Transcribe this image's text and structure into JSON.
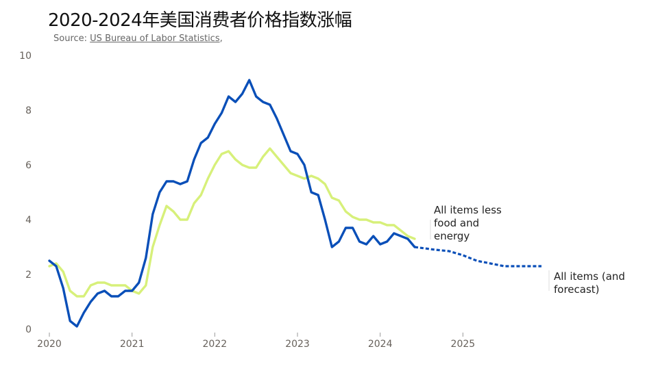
{
  "header": {
    "title": "2020-2024年美国消费者价格指数涨幅",
    "source_prefix": "Source: ",
    "source_link": "US Bureau of Labor Statistics",
    "source_suffix": ","
  },
  "chart_data": {
    "type": "line",
    "x_range": [
      2020.0,
      2025.95
    ],
    "ylim": [
      0,
      10
    ],
    "y_ticks": [
      0,
      2,
      4,
      6,
      8,
      10
    ],
    "x_ticks": [
      {
        "value": 2020,
        "label": "2020"
      },
      {
        "value": 2021,
        "label": "2021"
      },
      {
        "value": 2022,
        "label": "2022"
      },
      {
        "value": 2023,
        "label": "2023"
      },
      {
        "value": 2024,
        "label": "2024"
      },
      {
        "value": 2025,
        "label": "2025"
      }
    ],
    "grid": false,
    "series": [
      {
        "key": "core",
        "label_lines": [
          "All items less",
          "food and",
          "energy"
        ],
        "color": "#d7f07a",
        "style": "solid",
        "points": [
          [
            2020.0,
            2.3
          ],
          [
            2020.083,
            2.4
          ],
          [
            2020.167,
            2.1
          ],
          [
            2020.25,
            1.4
          ],
          [
            2020.333,
            1.2
          ],
          [
            2020.417,
            1.2
          ],
          [
            2020.5,
            1.6
          ],
          [
            2020.583,
            1.7
          ],
          [
            2020.667,
            1.7
          ],
          [
            2020.75,
            1.6
          ],
          [
            2020.833,
            1.6
          ],
          [
            2020.917,
            1.6
          ],
          [
            2021.0,
            1.4
          ],
          [
            2021.083,
            1.3
          ],
          [
            2021.167,
            1.6
          ],
          [
            2021.25,
            3.0
          ],
          [
            2021.333,
            3.8
          ],
          [
            2021.417,
            4.5
          ],
          [
            2021.5,
            4.3
          ],
          [
            2021.583,
            4.0
          ],
          [
            2021.667,
            4.0
          ],
          [
            2021.75,
            4.6
          ],
          [
            2021.833,
            4.9
          ],
          [
            2021.917,
            5.5
          ],
          [
            2022.0,
            6.0
          ],
          [
            2022.083,
            6.4
          ],
          [
            2022.167,
            6.5
          ],
          [
            2022.25,
            6.2
          ],
          [
            2022.333,
            6.0
          ],
          [
            2022.417,
            5.9
          ],
          [
            2022.5,
            5.9
          ],
          [
            2022.583,
            6.3
          ],
          [
            2022.667,
            6.6
          ],
          [
            2022.75,
            6.3
          ],
          [
            2022.833,
            6.0
          ],
          [
            2022.917,
            5.7
          ],
          [
            2023.0,
            5.6
          ],
          [
            2023.083,
            5.5
          ],
          [
            2023.167,
            5.6
          ],
          [
            2023.25,
            5.5
          ],
          [
            2023.333,
            5.3
          ],
          [
            2023.417,
            4.8
          ],
          [
            2023.5,
            4.7
          ],
          [
            2023.583,
            4.3
          ],
          [
            2023.667,
            4.1
          ],
          [
            2023.75,
            4.0
          ],
          [
            2023.833,
            4.0
          ],
          [
            2023.917,
            3.9
          ],
          [
            2024.0,
            3.9
          ],
          [
            2024.083,
            3.8
          ],
          [
            2024.167,
            3.8
          ],
          [
            2024.25,
            3.6
          ],
          [
            2024.333,
            3.4
          ],
          [
            2024.417,
            3.3
          ]
        ]
      },
      {
        "key": "all",
        "label_lines": [
          "All items (and",
          "forecast)"
        ],
        "color": "#0a4fb8",
        "style": "solid",
        "points": [
          [
            2020.0,
            2.5
          ],
          [
            2020.083,
            2.3
          ],
          [
            2020.167,
            1.5
          ],
          [
            2020.25,
            0.3
          ],
          [
            2020.333,
            0.1
          ],
          [
            2020.417,
            0.6
          ],
          [
            2020.5,
            1.0
          ],
          [
            2020.583,
            1.3
          ],
          [
            2020.667,
            1.4
          ],
          [
            2020.75,
            1.2
          ],
          [
            2020.833,
            1.2
          ],
          [
            2020.917,
            1.4
          ],
          [
            2021.0,
            1.4
          ],
          [
            2021.083,
            1.7
          ],
          [
            2021.167,
            2.6
          ],
          [
            2021.25,
            4.2
          ],
          [
            2021.333,
            5.0
          ],
          [
            2021.417,
            5.4
          ],
          [
            2021.5,
            5.4
          ],
          [
            2021.583,
            5.3
          ],
          [
            2021.667,
            5.4
          ],
          [
            2021.75,
            6.2
          ],
          [
            2021.833,
            6.8
          ],
          [
            2021.917,
            7.0
          ],
          [
            2022.0,
            7.5
          ],
          [
            2022.083,
            7.9
          ],
          [
            2022.167,
            8.5
          ],
          [
            2022.25,
            8.3
          ],
          [
            2022.333,
            8.6
          ],
          [
            2022.417,
            9.1
          ],
          [
            2022.5,
            8.5
          ],
          [
            2022.583,
            8.3
          ],
          [
            2022.667,
            8.2
          ],
          [
            2022.75,
            7.7
          ],
          [
            2022.833,
            7.1
          ],
          [
            2022.917,
            6.5
          ],
          [
            2023.0,
            6.4
          ],
          [
            2023.083,
            6.0
          ],
          [
            2023.167,
            5.0
          ],
          [
            2023.25,
            4.9
          ],
          [
            2023.333,
            4.0
          ],
          [
            2023.417,
            3.0
          ],
          [
            2023.5,
            3.2
          ],
          [
            2023.583,
            3.7
          ],
          [
            2023.667,
            3.7
          ],
          [
            2023.75,
            3.2
          ],
          [
            2023.833,
            3.1
          ],
          [
            2023.917,
            3.4
          ],
          [
            2024.0,
            3.1
          ],
          [
            2024.083,
            3.2
          ],
          [
            2024.167,
            3.5
          ],
          [
            2024.25,
            3.4
          ],
          [
            2024.333,
            3.3
          ],
          [
            2024.417,
            3.0
          ]
        ]
      },
      {
        "key": "forecast",
        "color": "#0a4fb8",
        "style": "dotted",
        "points": [
          [
            2024.417,
            3.0
          ],
          [
            2024.667,
            2.9
          ],
          [
            2024.833,
            2.85
          ],
          [
            2025.0,
            2.7
          ],
          [
            2025.167,
            2.5
          ],
          [
            2025.333,
            2.4
          ],
          [
            2025.5,
            2.3
          ],
          [
            2025.75,
            2.3
          ],
          [
            2025.95,
            2.3
          ]
        ]
      }
    ]
  }
}
